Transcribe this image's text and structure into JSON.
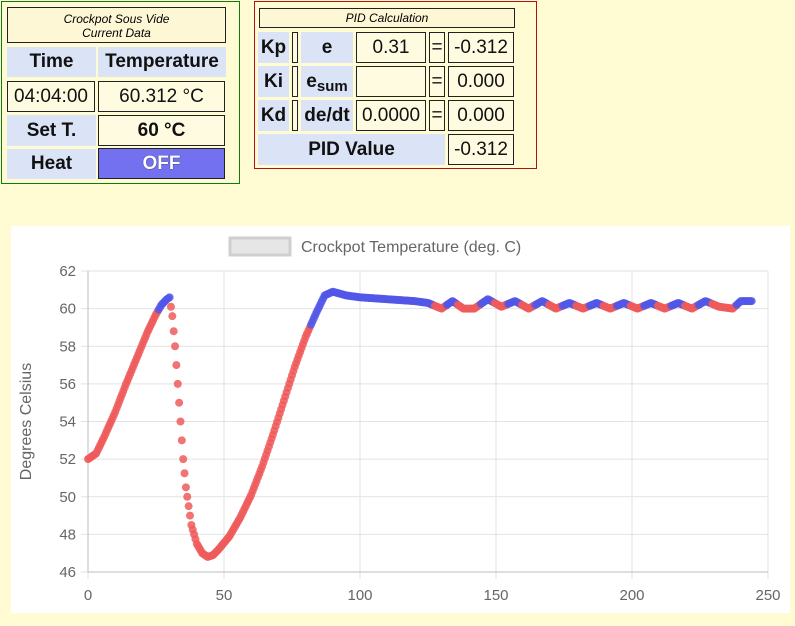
{
  "data_panel": {
    "title_line1": "Crockpot Sous Vide",
    "title_line2": "Current Data",
    "time_label": "Time",
    "temp_label": "Temperature",
    "time_value": "04:04:00",
    "temp_value": "60.312 °C",
    "set_label": "Set T.",
    "set_value": "60 °C",
    "heat_label": "Heat",
    "heat_button": "OFF"
  },
  "pid_panel": {
    "title": "PID Calculation",
    "kp_label": "Kp",
    "ki_label": "Ki",
    "kd_label": "Kd",
    "e_label": "e",
    "esum_label": "e",
    "esum_sub": "sum",
    "dedt_label": "de/dt",
    "e_value": "0.31",
    "esum_value": "",
    "dedt_value": "0.0000",
    "eq": "=",
    "p_term": "-0.312",
    "i_term": "0.000",
    "d_term": "0.000",
    "pid_value_label": "PID Value",
    "pid_value": "-0.312"
  },
  "colors": {
    "heat_on_point": "#ef5a5a",
    "heat_off_point": "#5257e8",
    "off_button": "#7471f0"
  },
  "chart_data": {
    "type": "scatter",
    "title": "",
    "legend_label": "Crockpot Temperature (deg. C)",
    "legend_position": "top",
    "xlabel": "",
    "ylabel": "Degrees Celsius",
    "xlim": [
      0,
      250
    ],
    "ylim": [
      46,
      62
    ],
    "xticks": [
      0,
      50,
      100,
      150,
      200,
      250
    ],
    "yticks": [
      46,
      48,
      50,
      52,
      54,
      56,
      58,
      60,
      62
    ],
    "grid": true,
    "series_keypoints": [
      [
        0,
        52.0,
        "on"
      ],
      [
        3,
        52.3,
        "on"
      ],
      [
        6,
        53.2,
        "on"
      ],
      [
        10,
        54.5,
        "on"
      ],
      [
        14,
        56.0,
        "on"
      ],
      [
        18,
        57.4,
        "on"
      ],
      [
        22,
        58.8,
        "on"
      ],
      [
        25,
        59.7,
        "on"
      ],
      [
        27,
        60.2,
        "off"
      ],
      [
        29,
        60.5,
        "off"
      ],
      [
        30,
        60.6,
        "off"
      ],
      [
        31,
        59.6,
        "on"
      ],
      [
        32,
        58.0,
        "on"
      ],
      [
        33,
        56.0,
        "on"
      ],
      [
        34,
        54.0,
        "on"
      ],
      [
        35,
        52.0,
        "on"
      ],
      [
        36,
        50.5,
        "on"
      ],
      [
        37,
        49.5,
        "on"
      ],
      [
        38,
        48.5,
        "on"
      ],
      [
        40,
        47.5,
        "on"
      ],
      [
        42,
        47.0,
        "on"
      ],
      [
        44,
        46.8,
        "on"
      ],
      [
        46,
        46.9,
        "on"
      ],
      [
        48,
        47.2,
        "on"
      ],
      [
        52,
        47.9,
        "on"
      ],
      [
        56,
        48.9,
        "on"
      ],
      [
        60,
        50.1,
        "on"
      ],
      [
        64,
        51.6,
        "on"
      ],
      [
        68,
        53.3,
        "on"
      ],
      [
        72,
        55.1,
        "on"
      ],
      [
        76,
        56.9,
        "on"
      ],
      [
        80,
        58.5,
        "on"
      ],
      [
        84,
        59.8,
        "off"
      ],
      [
        87,
        60.7,
        "off"
      ],
      [
        90,
        60.9,
        "off"
      ],
      [
        95,
        60.7,
        "off"
      ],
      [
        100,
        60.6,
        "off"
      ],
      [
        110,
        60.5,
        "off"
      ],
      [
        120,
        60.4,
        "off"
      ],
      [
        125,
        60.3,
        "off"
      ],
      [
        130,
        60.0,
        "on"
      ],
      [
        134,
        60.4,
        "off"
      ],
      [
        138,
        60.0,
        "on"
      ],
      [
        142,
        60.0,
        "on"
      ],
      [
        147,
        60.5,
        "off"
      ],
      [
        152,
        60.1,
        "on"
      ],
      [
        157,
        60.4,
        "off"
      ],
      [
        162,
        60.0,
        "on"
      ],
      [
        167,
        60.4,
        "off"
      ],
      [
        172,
        60.0,
        "on"
      ],
      [
        177,
        60.3,
        "off"
      ],
      [
        182,
        60.0,
        "on"
      ],
      [
        187,
        60.3,
        "off"
      ],
      [
        192,
        60.0,
        "on"
      ],
      [
        197,
        60.3,
        "off"
      ],
      [
        202,
        60.0,
        "on"
      ],
      [
        207,
        60.3,
        "off"
      ],
      [
        212,
        60.0,
        "on"
      ],
      [
        217,
        60.3,
        "off"
      ],
      [
        222,
        60.0,
        "on"
      ],
      [
        227,
        60.4,
        "off"
      ],
      [
        232,
        60.1,
        "on"
      ],
      [
        237,
        60.0,
        "on"
      ],
      [
        240,
        60.4,
        "off"
      ],
      [
        244,
        60.4,
        "off"
      ]
    ]
  }
}
